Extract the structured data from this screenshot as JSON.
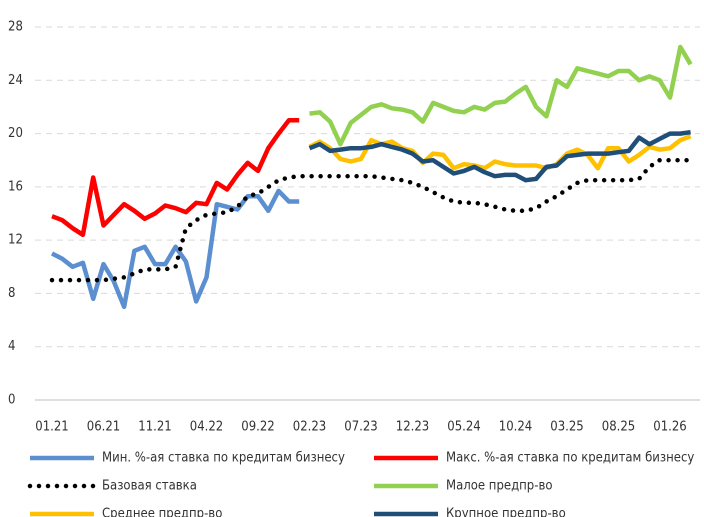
{
  "chart_data": {
    "type": "line",
    "categories": [
      "01.21",
      null,
      null,
      null,
      null,
      "06.21",
      null,
      null,
      null,
      null,
      "11.21",
      null,
      null,
      null,
      null,
      "04.22",
      null,
      null,
      null,
      null,
      "09.22",
      null,
      null,
      null,
      null,
      "02.23",
      null,
      null,
      null,
      null,
      "07.23",
      null,
      null,
      null,
      null,
      "12.23",
      null,
      null,
      null,
      null,
      "05.24",
      null,
      null,
      null,
      null,
      "10.24",
      null,
      null,
      null,
      null,
      "03.25",
      null,
      null,
      null,
      null,
      "08.25",
      null,
      null,
      null,
      null,
      "01.26",
      null,
      null
    ],
    "ylim": [
      0,
      28
    ],
    "yticks": [
      0,
      4,
      8,
      12,
      16,
      20,
      24,
      28
    ],
    "grid": true,
    "series": [
      {
        "name": "Мин. %-ая ставка по кредитам бизнесу",
        "color": "#5b8fd0",
        "style": "solid",
        "values": [
          11.0,
          10.6,
          10.0,
          10.3,
          7.6,
          10.2,
          8.9,
          7.0,
          11.2,
          11.5,
          10.2,
          10.2,
          11.5,
          10.4,
          7.4,
          9.2,
          14.7,
          14.5,
          14.3,
          15.3,
          15.3,
          14.2,
          15.7,
          14.9,
          14.9,
          null,
          null,
          null,
          null,
          null,
          null,
          null,
          null,
          null,
          null,
          null,
          null,
          null,
          null,
          null,
          null,
          null,
          null,
          null,
          null,
          null,
          null,
          null,
          null,
          null,
          null,
          null,
          null,
          null,
          null,
          null,
          null,
          null,
          null,
          null,
          null,
          null,
          null
        ]
      },
      {
        "name": "Макс. %-ая ставка по кредитам бизнесу",
        "color": "#ff0000",
        "style": "solid",
        "values": [
          13.8,
          13.5,
          12.9,
          12.4,
          16.7,
          13.1,
          13.9,
          14.7,
          14.2,
          13.6,
          14.0,
          14.6,
          14.4,
          14.1,
          14.8,
          14.7,
          16.3,
          15.8,
          16.9,
          17.8,
          17.2,
          18.9,
          20.0,
          21.0,
          21.0,
          null,
          null,
          null,
          null,
          null,
          null,
          null,
          null,
          null,
          null,
          null,
          null,
          null,
          null,
          null,
          null,
          null,
          null,
          null,
          null,
          null,
          null,
          null,
          null,
          null,
          null,
          null,
          null,
          null,
          null,
          null,
          null,
          null,
          null,
          null,
          null,
          null,
          null
        ]
      },
      {
        "name": "Базовая ставка",
        "color": "#000000",
        "style": "dotted",
        "values": [
          9.0,
          9.0,
          9.0,
          9.0,
          9.0,
          9.0,
          9.1,
          9.2,
          9.5,
          9.8,
          9.8,
          9.8,
          10.0,
          12.9,
          13.5,
          13.9,
          14.0,
          14.1,
          14.5,
          15.3,
          15.5,
          16.0,
          16.5,
          16.7,
          16.8,
          16.8,
          16.8,
          16.8,
          16.8,
          16.8,
          16.8,
          16.8,
          16.7,
          16.6,
          16.5,
          16.3,
          16.0,
          15.6,
          15.2,
          14.9,
          14.8,
          14.8,
          14.7,
          14.5,
          14.3,
          14.2,
          14.2,
          14.4,
          14.9,
          15.3,
          15.8,
          16.3,
          16.5,
          16.5,
          16.5,
          16.5,
          16.5,
          16.6,
          17.5,
          18.0,
          18.0,
          18.0,
          18.0
        ]
      },
      {
        "name": "Малое предпр-во",
        "color": "#92d050",
        "style": "solid",
        "values": [
          null,
          null,
          null,
          null,
          null,
          null,
          null,
          null,
          null,
          null,
          null,
          null,
          null,
          null,
          null,
          null,
          null,
          null,
          null,
          null,
          null,
          null,
          null,
          null,
          null,
          21.5,
          21.6,
          20.9,
          19.2,
          20.8,
          21.4,
          22.0,
          22.2,
          21.9,
          21.8,
          21.6,
          20.9,
          22.3,
          22.0,
          21.7,
          21.6,
          22.0,
          21.8,
          22.3,
          22.4,
          23.0,
          23.5,
          22.0,
          21.3,
          24.0,
          23.5,
          24.9,
          24.7,
          24.5,
          24.3,
          24.7,
          24.7,
          24.0,
          24.3,
          24.0,
          22.7,
          26.5,
          25.2
        ]
      },
      {
        "name": "Среднее предпр-во",
        "color": "#ffc000",
        "style": "solid",
        "values": [
          null,
          null,
          null,
          null,
          null,
          null,
          null,
          null,
          null,
          null,
          null,
          null,
          null,
          null,
          null,
          null,
          null,
          null,
          null,
          null,
          null,
          null,
          null,
          null,
          null,
          19.0,
          19.4,
          18.9,
          18.1,
          17.9,
          18.1,
          19.5,
          19.2,
          19.4,
          18.9,
          18.7,
          17.8,
          18.5,
          18.4,
          17.4,
          17.7,
          17.6,
          17.4,
          17.9,
          17.7,
          17.6,
          17.6,
          17.6,
          17.4,
          17.7,
          18.5,
          18.8,
          18.4,
          17.4,
          18.9,
          18.9,
          17.9,
          18.4,
          19.0,
          18.8,
          18.9,
          19.5,
          19.8
        ]
      },
      {
        "name": "Крупное предпр-во",
        "color": "#1f4e79",
        "style": "solid",
        "values": [
          null,
          null,
          null,
          null,
          null,
          null,
          null,
          null,
          null,
          null,
          null,
          null,
          null,
          null,
          null,
          null,
          null,
          null,
          null,
          null,
          null,
          null,
          null,
          null,
          null,
          18.9,
          19.2,
          18.7,
          18.8,
          18.9,
          18.9,
          19.0,
          19.2,
          19.0,
          18.8,
          18.5,
          17.9,
          18.0,
          17.5,
          17.0,
          17.2,
          17.5,
          17.1,
          16.8,
          16.9,
          16.9,
          16.5,
          16.6,
          17.5,
          17.6,
          18.3,
          18.4,
          18.5,
          18.5,
          18.5,
          18.6,
          18.7,
          19.7,
          19.2,
          19.6,
          20.0,
          20.0,
          20.1
        ]
      }
    ]
  }
}
